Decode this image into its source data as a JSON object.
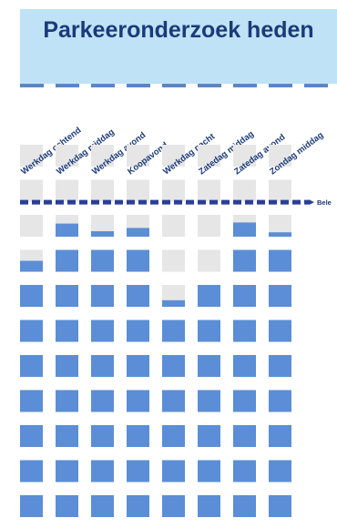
{
  "title": "Parkeeronderzoek heden",
  "threshold_label": "Bele",
  "colors": {
    "header_bg": "#bfe2f6",
    "title": "#1b3a7a",
    "filled": "#5b8ed6",
    "empty": "#e6e6e6",
    "threshold": "#2a3f95"
  },
  "chart_data": {
    "type": "waffle-columns",
    "title": "Parkeeronderzoek heden",
    "categories": [
      "Werkdag ochtend",
      "Werkdag middag",
      "Werkdag avond",
      "Koopavond",
      "Werkdag nacht",
      "Zatedag middag",
      "Zatedag avond",
      "Zondag middag"
    ],
    "cells_per_column": 11,
    "values": [
      7.5,
      8.6,
      8.25,
      8.4,
      6.3,
      7.0,
      8.65,
      8.2
    ],
    "threshold": 8.75,
    "threshold_label": "Bele"
  }
}
